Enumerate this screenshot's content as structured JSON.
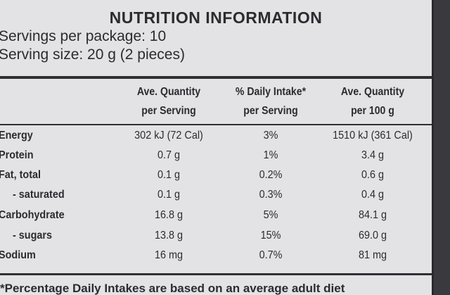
{
  "header": {
    "title": "NUTRITION INFORMATION",
    "servings_per_package": "Servings per package: 10",
    "serving_size": "Serving size: 20 g (2 pieces)"
  },
  "table": {
    "columns": [
      [
        "Ave. Quantity",
        "per Serving"
      ],
      [
        "% Daily Intake*",
        "per Serving"
      ],
      [
        "Ave. Quantity",
        "per 100 g"
      ]
    ],
    "rows": [
      [
        "Energy",
        "302 kJ (72 Cal)",
        "3%",
        "1510 kJ (361 Cal)"
      ],
      [
        "Protein",
        "0.7 g",
        "1%",
        "3.4 g"
      ],
      [
        "Fat, total",
        "0.1 g",
        "0.2%",
        "0.6 g"
      ],
      [
        "- saturated",
        "0.1 g",
        "0.3%",
        "0.4 g"
      ],
      [
        "Carbohydrate",
        "16.8 g",
        "5%",
        "84.1 g"
      ],
      [
        "- sugars",
        "13.8 g",
        "15%",
        "69.0 g"
      ],
      [
        "Sodium",
        "16 mg",
        "0.7%",
        "81 mg"
      ]
    ]
  },
  "footnote": "*Percentage Daily Intakes are based on an average adult diet"
}
